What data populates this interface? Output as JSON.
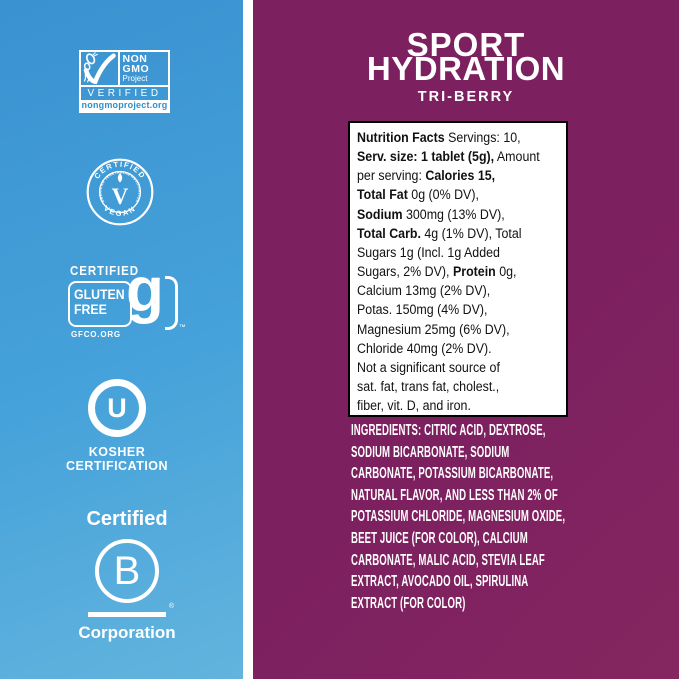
{
  "colors": {
    "panel_blue_top": "#3A92D0",
    "panel_blue_bottom": "#62B4DD",
    "panel_purple": "#7D2060",
    "badge_white": "#FFFFFF",
    "nongmo_url_blue": "#2E8FCC",
    "nutrition_text": "#111111"
  },
  "badges": {
    "non_gmo": {
      "line1": "NON",
      "line2": "GMO",
      "line3": "Project",
      "verified": "VERIFIED",
      "url": "nongmoproject.org"
    },
    "vegan": {
      "top": "CERTIFIED",
      "ring": "AMERICAN VEGETARIAN ASSOCIATION",
      "center": "V",
      "bottom": "VEGAN"
    },
    "gluten_free": {
      "certified": "CERTIFIED",
      "word1": "GLUTEN",
      "word2": "FREE",
      "g": "g",
      "tm": "™",
      "org": "GFCO.ORG"
    },
    "kosher": {
      "letter": "U",
      "line1": "KOSHER",
      "line2": "CERTIFICATION"
    },
    "b_corp": {
      "certified": "Certified",
      "letter": "B",
      "reg": "®",
      "corporation": "Corporation"
    }
  },
  "product": {
    "title_line1": "SPORT",
    "title_line2": "HYDRATION",
    "flavor": "TRI-BERRY"
  },
  "nutrition": {
    "lines": [
      [
        {
          "b": true,
          "t": "Nutrition Facts"
        },
        {
          "b": false,
          "t": " Servings: 10,"
        }
      ],
      [
        {
          "b": true,
          "t": "Serv. size: 1 tablet (5g),"
        },
        {
          "b": false,
          "t": " Amount"
        }
      ],
      [
        {
          "b": false,
          "t": "per serving: "
        },
        {
          "b": true,
          "t": "Calories 15,"
        }
      ],
      [
        {
          "b": true,
          "t": "Total Fat"
        },
        {
          "b": false,
          "t": " 0g (0% DV),"
        }
      ],
      [
        {
          "b": true,
          "t": "Sodium"
        },
        {
          "b": false,
          "t": " 300mg (13% DV),"
        }
      ],
      [
        {
          "b": true,
          "t": "Total Carb."
        },
        {
          "b": false,
          "t": " 4g (1% DV), Total"
        }
      ],
      [
        {
          "b": false,
          "t": "Sugars 1g (Incl. 1g Added"
        }
      ],
      [
        {
          "b": false,
          "t": "Sugars, 2% DV), "
        },
        {
          "b": true,
          "t": "Protein"
        },
        {
          "b": false,
          "t": " 0g,"
        }
      ],
      [
        {
          "b": false,
          "t": "Calcium 13mg (2% DV),"
        }
      ],
      [
        {
          "b": false,
          "t": "Potas. 150mg (4% DV),"
        }
      ],
      [
        {
          "b": false,
          "t": "Magnesium 25mg (6% DV),"
        }
      ],
      [
        {
          "b": false,
          "t": "Chloride 40mg (2% DV)."
        }
      ],
      [
        {
          "b": false,
          "t": "Not a significant source of"
        }
      ],
      [
        {
          "b": false,
          "t": "sat. fat, trans fat, cholest.,"
        }
      ],
      [
        {
          "b": false,
          "t": "fiber, vit. D, and iron."
        }
      ]
    ]
  },
  "ingredients": {
    "lines": [
      "INGREDIENTS: CITRIC ACID, DEXTROSE,",
      "SODIUM BICARBONATE, SODIUM",
      "CARBONATE, POTASSIUM BICARBONATE,",
      "NATURAL FLAVOR, AND LESS THAN 2% OF",
      "POTASSIUM CHLORIDE, MAGNESIUM OXIDE,",
      "BEET JUICE (FOR COLOR), CALCIUM",
      "CARBONATE, MALIC ACID, STEVIA LEAF",
      "EXTRACT, AVOCADO OIL, SPIRULINA",
      "EXTRACT (FOR COLOR)"
    ]
  }
}
